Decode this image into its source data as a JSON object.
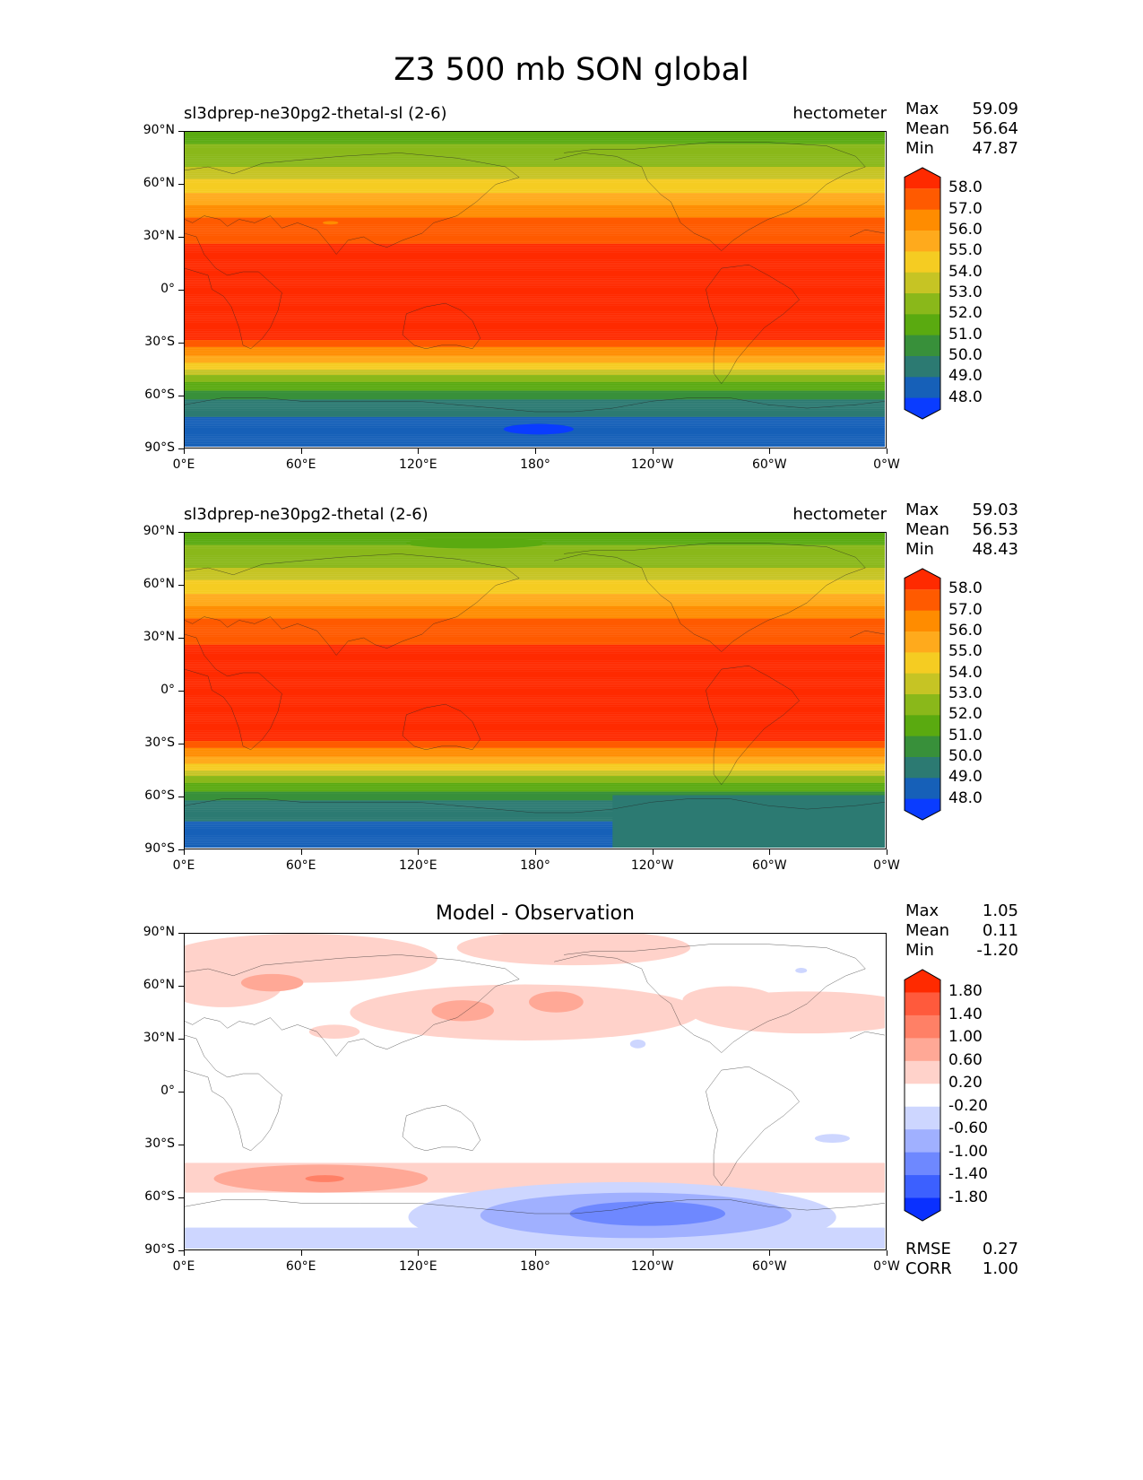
{
  "suptitle": "Z3 500 mb SON global",
  "panels": [
    {
      "title_left": "sl3dprep-ne30pg2-thetal-sl (2-6)",
      "title_right": "hectometer",
      "title_center": "",
      "stats": [
        {
          "label": "Max",
          "value": "59.09"
        },
        {
          "label": "Mean",
          "value": "56.64"
        },
        {
          "label": "Min",
          "value": "47.87"
        }
      ],
      "colorbar": {
        "labels": [
          "58.0",
          "57.0",
          "56.0",
          "55.0",
          "54.0",
          "53.0",
          "52.0",
          "51.0",
          "50.0",
          "49.0",
          "48.0"
        ],
        "colors": [
          "#ff2a00",
          "#ff5a00",
          "#ff8c00",
          "#ffaa1c",
          "#f5cc22",
          "#c6c424",
          "#8ab81a",
          "#5aaa10",
          "#38903a",
          "#2c7a72",
          "#1660b8",
          "#0a3cff"
        ]
      }
    },
    {
      "title_left": "sl3dprep-ne30pg2-thetal (2-6)",
      "title_right": "hectometer",
      "title_center": "",
      "stats": [
        {
          "label": "Max",
          "value": "59.03"
        },
        {
          "label": "Mean",
          "value": "56.53"
        },
        {
          "label": "Min",
          "value": "48.43"
        }
      ],
      "colorbar": {
        "labels": [
          "58.0",
          "57.0",
          "56.0",
          "55.0",
          "54.0",
          "53.0",
          "52.0",
          "51.0",
          "50.0",
          "49.0",
          "48.0"
        ],
        "colors": [
          "#ff2a00",
          "#ff5a00",
          "#ff8c00",
          "#ffaa1c",
          "#f5cc22",
          "#c6c424",
          "#8ab81a",
          "#5aaa10",
          "#38903a",
          "#2c7a72",
          "#1660b8",
          "#0a3cff"
        ]
      }
    },
    {
      "title_left": "",
      "title_right": "",
      "title_center": "Model - Observation",
      "stats": [
        {
          "label": "Max",
          "value": "1.05"
        },
        {
          "label": "Mean",
          "value": "0.11"
        },
        {
          "label": "Min",
          "value": "-1.20"
        }
      ],
      "footer_stats": [
        {
          "label": "RMSE",
          "value": "0.27"
        },
        {
          "label": "CORR",
          "value": "1.00"
        }
      ],
      "colorbar": {
        "labels": [
          "1.80",
          "1.40",
          "1.00",
          "0.60",
          "0.20",
          "-0.20",
          "-0.60",
          "-1.00",
          "-1.40",
          "-1.80"
        ],
        "colors": [
          "#ff2a00",
          "#ff5a3c",
          "#ff8066",
          "#ffa896",
          "#ffd2ca",
          "#ffffff",
          "#cdd6ff",
          "#a0b0ff",
          "#6e88ff",
          "#3c60ff",
          "#0a30ff"
        ]
      }
    }
  ],
  "axes": {
    "y_ticks": [
      "90°N",
      "60°N",
      "30°N",
      "0°",
      "30°S",
      "60°S",
      "90°S"
    ],
    "x_ticks": [
      "0°E",
      "60°E",
      "120°E",
      "180°",
      "120°W",
      "60°W",
      "0°W"
    ]
  },
  "chart_data": {
    "type": "heatmap",
    "title": "Z3 500 mb SON global",
    "variable": "Z3 500 mb",
    "units": "hectometer",
    "season": "SON",
    "x_range_lon": [
      0,
      360
    ],
    "y_range_lat": [
      -90,
      90
    ],
    "panels": [
      {
        "name": "sl3dprep-ne30pg2-thetal-sl (2-6)",
        "max": 59.09,
        "mean": 56.64,
        "min": 47.87,
        "levels": [
          48,
          49,
          50,
          51,
          52,
          53,
          54,
          55,
          56,
          57,
          58
        ],
        "approx_zonal_profile": [
          {
            "lat": 90,
            "value": 51.5
          },
          {
            "lat": 70,
            "value": 53.0
          },
          {
            "lat": 55,
            "value": 55.0
          },
          {
            "lat": 45,
            "value": 56.5
          },
          {
            "lat": 35,
            "value": 57.8
          },
          {
            "lat": 0,
            "value": 58.6
          },
          {
            "lat": -28,
            "value": 58.2
          },
          {
            "lat": -40,
            "value": 55.5
          },
          {
            "lat": -55,
            "value": 51.5
          },
          {
            "lat": -65,
            "value": 49.5
          },
          {
            "lat": -80,
            "value": 48.6
          }
        ]
      },
      {
        "name": "sl3dprep-ne30pg2-thetal (2-6)",
        "max": 59.03,
        "mean": 56.53,
        "min": 48.43,
        "levels": [
          48,
          49,
          50,
          51,
          52,
          53,
          54,
          55,
          56,
          57,
          58
        ],
        "approx_zonal_profile": [
          {
            "lat": 90,
            "value": 51.5
          },
          {
            "lat": 70,
            "value": 53.0
          },
          {
            "lat": 55,
            "value": 55.0
          },
          {
            "lat": 45,
            "value": 56.5
          },
          {
            "lat": 35,
            "value": 57.8
          },
          {
            "lat": 0,
            "value": 58.6
          },
          {
            "lat": -28,
            "value": 58.2
          },
          {
            "lat": -40,
            "value": 55.5
          },
          {
            "lat": -55,
            "value": 51.5
          },
          {
            "lat": -65,
            "value": 49.6
          },
          {
            "lat": -80,
            "value": 48.7
          }
        ]
      },
      {
        "name": "Model - Observation",
        "max": 1.05,
        "mean": 0.11,
        "min": -1.2,
        "rmse": 0.27,
        "corr": 1.0,
        "levels": [
          -1.8,
          -1.4,
          -1.0,
          -0.6,
          -0.2,
          0.2,
          0.6,
          1.0,
          1.4,
          1.8
        ]
      }
    ]
  }
}
